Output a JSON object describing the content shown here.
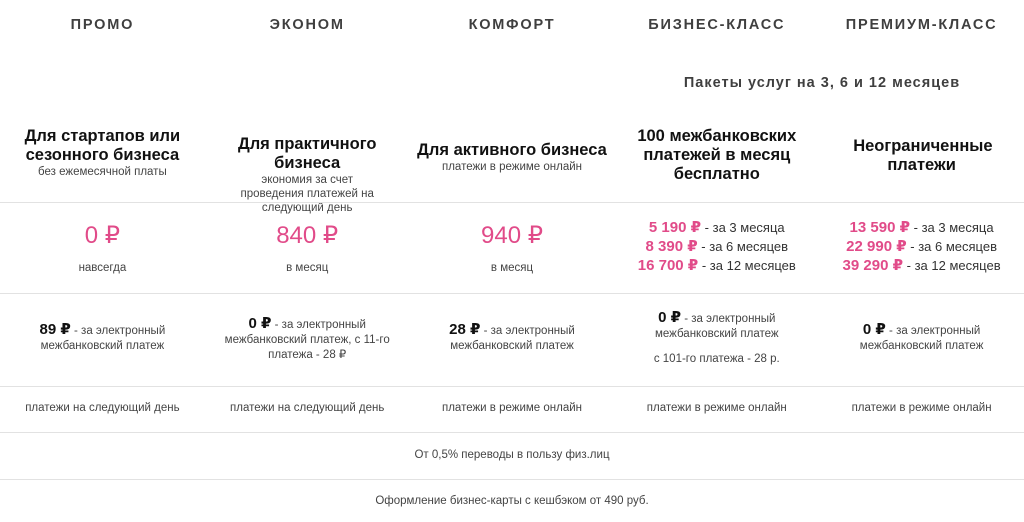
{
  "tabs": [
    "ПРОМО",
    "ЭКОНОМ",
    "КОМФОРТ",
    "БИЗНЕС-КЛАСС",
    "ПРЕМИУМ-КЛАСС"
  ],
  "packages_note": "Пакеты услуг на 3, 6 и 12 месяцев",
  "plans": [
    {
      "title": "Для стартапов или сезонного бизнеса",
      "subtitle": "без ежемесячной платы",
      "price": "0 ₽",
      "price_note": "навсегда",
      "fee_amount": "89 ₽",
      "fee_text": " - за электронный межбанковский платеж",
      "payments": "платежи на следующий день"
    },
    {
      "title": "Для практичного бизнеса",
      "subtitle": "экономия за счет проведения платежей на следующий день",
      "price": "840 ₽",
      "price_note": "в месяц",
      "fee_amount": "0 ₽",
      "fee_text": " - за электронный межбанковский платеж, с 11-го платежа - 28 ₽",
      "payments": "платежи на следующий день"
    },
    {
      "title": "Для активного бизнеса",
      "subtitle": "платежи в режиме онлайн",
      "price": "940 ₽",
      "price_note": "в месяц",
      "fee_amount": "28 ₽",
      "fee_text": " - за электронный межбанковский платеж",
      "payments": "платежи в режиме онлайн"
    },
    {
      "title": "100 межбанковских платежей в месяц бесплатно",
      "packages": [
        {
          "price": "5 190 ₽",
          "period": " - за 3 месяца"
        },
        {
          "price": "8 390 ₽",
          "period": " - за 6 месяцев"
        },
        {
          "price": "16 700 ₽",
          "period": " - за 12 месяцев"
        }
      ],
      "fee_amount": "0 ₽",
      "fee_text": " - за электронный межбанковский платеж",
      "fee_extra": "с 101-го платежа - 28 р.",
      "payments": "платежи в режиме онлайн"
    },
    {
      "title": "Неограниченные платежи",
      "packages": [
        {
          "price": "13 590 ₽",
          "period": " - за 3 месяца"
        },
        {
          "price": "22 990 ₽",
          "period": " - за 6 месяцев"
        },
        {
          "price": "39 290 ₽",
          "period": " - за 12 месяцев"
        }
      ],
      "fee_amount": "0 ₽",
      "fee_text": " - за электронный межбанковский платеж",
      "payments": "платежи в режиме онлайн"
    }
  ],
  "transfers_note": "От 0,5% переводы в пользу физ.лиц",
  "card_note": "Оформление бизнес-карты с кешбэком от 490 руб.",
  "colors": {
    "accent": "#e14b89",
    "divider": "#e2e2e2"
  }
}
